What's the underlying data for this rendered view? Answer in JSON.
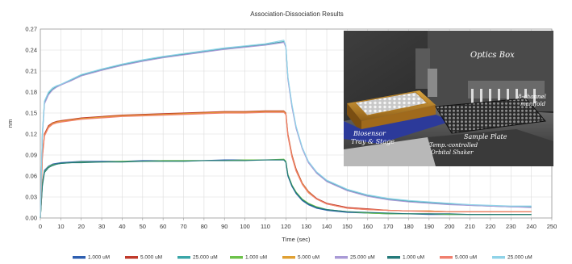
{
  "chart_data": {
    "type": "line",
    "title": "Association-Dissociation Results",
    "xlabel": "Time (sec)",
    "ylabel": "nm",
    "xlim": [
      0,
      250
    ],
    "ylim": [
      0,
      0.27
    ],
    "xticks": [
      0,
      10,
      20,
      30,
      40,
      50,
      60,
      70,
      80,
      90,
      100,
      110,
      120,
      130,
      140,
      150,
      160,
      170,
      180,
      190,
      200,
      210,
      220,
      230,
      240,
      250
    ],
    "yticks": [
      "0.00",
      "0.03",
      "0.06",
      "0.09",
      "0.12",
      "0.15",
      "0.18",
      "0.21",
      "0.24",
      "0.27"
    ],
    "grid": true,
    "legend_position": "bottom",
    "x": [
      0,
      1,
      2,
      4,
      6,
      8,
      10,
      15,
      20,
      30,
      40,
      50,
      60,
      70,
      80,
      90,
      100,
      110,
      119,
      120,
      121,
      123,
      125,
      128,
      131,
      135,
      140,
      150,
      160,
      170,
      180,
      190,
      200,
      210,
      220,
      230,
      240
    ],
    "series": [
      {
        "name": "1.000 uM",
        "color": "#2e5fb0",
        "values": [
          0.0,
          0.05,
          0.068,
          0.074,
          0.077,
          0.078,
          0.079,
          0.08,
          0.081,
          0.081,
          0.081,
          0.082,
          0.082,
          0.082,
          0.082,
          0.083,
          0.083,
          0.083,
          0.083,
          0.08,
          0.06,
          0.045,
          0.035,
          0.025,
          0.019,
          0.014,
          0.011,
          0.008,
          0.007,
          0.006,
          0.006,
          0.005,
          0.005,
          0.005,
          0.005,
          0.005,
          0.005
        ]
      },
      {
        "name": "5.000 uM",
        "color": "#c03a2b",
        "values": [
          0.0,
          0.09,
          0.12,
          0.132,
          0.136,
          0.138,
          0.139,
          0.141,
          0.143,
          0.145,
          0.147,
          0.148,
          0.149,
          0.15,
          0.151,
          0.152,
          0.152,
          0.153,
          0.153,
          0.15,
          0.12,
          0.09,
          0.07,
          0.05,
          0.038,
          0.028,
          0.021,
          0.015,
          0.013,
          0.011,
          0.01,
          0.01,
          0.009,
          0.009,
          0.009,
          0.009,
          0.009
        ]
      },
      {
        "name": "25.000 uM",
        "color": "#3aa6a8",
        "values": [
          0.0,
          0.12,
          0.165,
          0.178,
          0.184,
          0.188,
          0.19,
          0.197,
          0.204,
          0.212,
          0.219,
          0.225,
          0.23,
          0.234,
          0.238,
          0.242,
          0.245,
          0.248,
          0.252,
          0.245,
          0.2,
          0.16,
          0.13,
          0.1,
          0.08,
          0.065,
          0.053,
          0.04,
          0.032,
          0.027,
          0.024,
          0.022,
          0.02,
          0.018,
          0.017,
          0.016,
          0.016
        ]
      },
      {
        "name": "1.000 uM",
        "color": "#6cc24a",
        "values": [
          0.0,
          0.048,
          0.066,
          0.073,
          0.076,
          0.077,
          0.078,
          0.079,
          0.08,
          0.08,
          0.081,
          0.081,
          0.082,
          0.082,
          0.082,
          0.082,
          0.083,
          0.083,
          0.084,
          0.081,
          0.062,
          0.047,
          0.037,
          0.027,
          0.021,
          0.016,
          0.012,
          0.009,
          0.007,
          0.006,
          0.006,
          0.006,
          0.005,
          0.005,
          0.005,
          0.005,
          0.005
        ]
      },
      {
        "name": "5.000 uM",
        "color": "#e0a032",
        "values": [
          0.0,
          0.088,
          0.118,
          0.13,
          0.135,
          0.137,
          0.138,
          0.14,
          0.142,
          0.144,
          0.146,
          0.147,
          0.148,
          0.149,
          0.15,
          0.151,
          0.151,
          0.152,
          0.152,
          0.149,
          0.118,
          0.088,
          0.068,
          0.049,
          0.037,
          0.027,
          0.02,
          0.014,
          0.012,
          0.011,
          0.01,
          0.01,
          0.009,
          0.009,
          0.009,
          0.009,
          0.009
        ]
      },
      {
        "name": "25.000 uM",
        "color": "#a99ad6",
        "values": [
          0.0,
          0.118,
          0.163,
          0.176,
          0.183,
          0.187,
          0.19,
          0.196,
          0.203,
          0.211,
          0.218,
          0.224,
          0.229,
          0.233,
          0.237,
          0.241,
          0.244,
          0.247,
          0.251,
          0.244,
          0.198,
          0.158,
          0.128,
          0.099,
          0.079,
          0.064,
          0.052,
          0.039,
          0.031,
          0.026,
          0.023,
          0.021,
          0.019,
          0.018,
          0.017,
          0.016,
          0.015
        ]
      },
      {
        "name": "1.000 uM",
        "color": "#247a7a",
        "values": [
          0.0,
          0.046,
          0.065,
          0.072,
          0.075,
          0.077,
          0.078,
          0.079,
          0.079,
          0.08,
          0.08,
          0.081,
          0.081,
          0.081,
          0.082,
          0.082,
          0.082,
          0.083,
          0.083,
          0.08,
          0.061,
          0.046,
          0.036,
          0.026,
          0.02,
          0.015,
          0.012,
          0.009,
          0.008,
          0.007,
          0.006,
          0.006,
          0.006,
          0.005,
          0.005,
          0.005,
          0.005
        ]
      },
      {
        "name": "5.000 uM",
        "color": "#f07f6e",
        "values": [
          0.0,
          0.086,
          0.117,
          0.129,
          0.134,
          0.136,
          0.137,
          0.139,
          0.141,
          0.143,
          0.145,
          0.146,
          0.147,
          0.148,
          0.149,
          0.15,
          0.15,
          0.151,
          0.151,
          0.148,
          0.117,
          0.087,
          0.067,
          0.048,
          0.036,
          0.027,
          0.02,
          0.014,
          0.012,
          0.011,
          0.01,
          0.009,
          0.009,
          0.009,
          0.009,
          0.009,
          0.009
        ]
      },
      {
        "name": "25.000 uM",
        "color": "#8fd3e8",
        "values": [
          0.0,
          0.122,
          0.167,
          0.18,
          0.186,
          0.189,
          0.191,
          0.198,
          0.205,
          0.213,
          0.22,
          0.226,
          0.231,
          0.235,
          0.239,
          0.243,
          0.246,
          0.249,
          0.254,
          0.246,
          0.202,
          0.162,
          0.131,
          0.101,
          0.081,
          0.066,
          0.054,
          0.041,
          0.033,
          0.028,
          0.025,
          0.023,
          0.021,
          0.019,
          0.018,
          0.017,
          0.017
        ]
      }
    ]
  },
  "photo": {
    "label_optics_box": "Optics Box",
    "label_8_channel": "8-channel",
    "label_manifold": "manifold",
    "label_biosensor": "Biosensor",
    "label_tray_stage": "Tray & Stage",
    "label_sample_plate": "Sample Plate",
    "label_temp": "Temp.-controlled",
    "label_orbital": "Orbital Shaker"
  }
}
